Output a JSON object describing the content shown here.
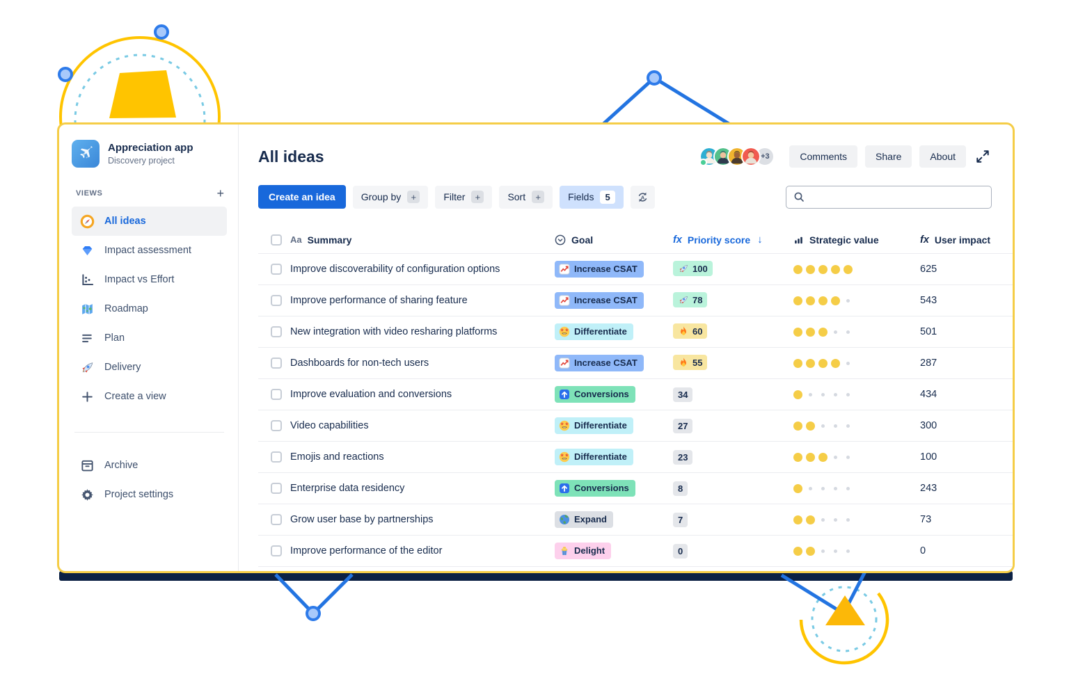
{
  "app": {
    "name": "Appreciation app",
    "project_type": "Discovery project",
    "icon": "airplane-icon"
  },
  "sidebar": {
    "views_label": "VIEWS",
    "add_view_label": "+",
    "items": [
      {
        "label": "All ideas",
        "icon": "compass-icon",
        "selected": true
      },
      {
        "label": "Impact assessment",
        "icon": "diamond-icon",
        "selected": false
      },
      {
        "label": "Impact vs Effort",
        "icon": "scatter-chart-icon",
        "selected": false
      },
      {
        "label": "Roadmap",
        "icon": "map-icon",
        "selected": false
      },
      {
        "label": "Plan",
        "icon": "align-lines-icon",
        "selected": false
      },
      {
        "label": "Delivery",
        "icon": "rocket-color-icon",
        "selected": false
      },
      {
        "label": "Create a view",
        "icon": "plus-icon",
        "selected": false
      }
    ],
    "footer_items": [
      {
        "label": "Archive",
        "icon": "archive-box-icon"
      },
      {
        "label": "Project settings",
        "icon": "gear-icon"
      }
    ]
  },
  "header": {
    "title": "All ideas",
    "avatars": [
      {
        "bg": "#2eafd3",
        "hair": "#e8713c",
        "skin": "#f5dec8",
        "shirt": "#f7f1e8",
        "status": true
      },
      {
        "bg": "#53c08a",
        "hair": "#3c4a5c",
        "skin": "#eec19c",
        "shirt": "#2f3b4e",
        "status": false
      },
      {
        "bg": "#f0b42f",
        "hair": "#33271f",
        "skin": "#9c6238",
        "shirt": "#4a3b2e",
        "status": false
      },
      {
        "bg": "#f15b50",
        "hair": "#7a4b2e",
        "skin": "#f2cba2",
        "shirt": "#e8e2d8",
        "status": false
      }
    ],
    "avatar_overflow": "+3",
    "buttons": [
      {
        "label": "Comments"
      },
      {
        "label": "Share"
      },
      {
        "label": "About"
      }
    ]
  },
  "toolbar": {
    "create_button": "Create an idea",
    "group_by": "Group by",
    "filter": "Filter",
    "sort": "Sort",
    "fields": "Fields",
    "fields_count": "5",
    "plus_badge": "+",
    "search_placeholder": ""
  },
  "table": {
    "header": {
      "summary": "Summary",
      "summary_icon_glyph": "Aa",
      "goal": "Goal",
      "priority": "Priority score",
      "priority_fx": "fx",
      "sort_arrow": "↓",
      "strategic": "Strategic value",
      "impact": "User impact",
      "impact_fx": "fx"
    },
    "strategic_max": 5,
    "rows": [
      {
        "summary": "Improve discoverability of configuration options",
        "goal": {
          "label": "Increase CSAT",
          "type": "csat",
          "icon": "chart-increasing-icon"
        },
        "priority": {
          "value": "100",
          "type": "green",
          "icon": "rocket-icon"
        },
        "strategic_value": 5,
        "user_impact": "625"
      },
      {
        "summary": "Improve performance of sharing feature",
        "goal": {
          "label": "Increase CSAT",
          "type": "csat",
          "icon": "chart-increasing-icon"
        },
        "priority": {
          "value": "78",
          "type": "green",
          "icon": "rocket-icon"
        },
        "strategic_value": 4,
        "user_impact": "543"
      },
      {
        "summary": "New integration with video resharing platforms",
        "goal": {
          "label": "Differentiate",
          "type": "differentiate",
          "icon": "star-struck-icon"
        },
        "priority": {
          "value": "60",
          "type": "yellow",
          "icon": "fire-icon"
        },
        "strategic_value": 3,
        "user_impact": "501"
      },
      {
        "summary": "Dashboards for non-tech users",
        "goal": {
          "label": "Increase CSAT",
          "type": "csat",
          "icon": "chart-increasing-icon"
        },
        "priority": {
          "value": "55",
          "type": "yellow",
          "icon": "fire-icon"
        },
        "strategic_value": 4,
        "user_impact": "287"
      },
      {
        "summary": "Improve evaluation and conversions",
        "goal": {
          "label": "Conversions",
          "type": "conversions",
          "icon": "up-arrow-icon"
        },
        "priority": {
          "value": "34",
          "type": "gray",
          "icon": ""
        },
        "strategic_value": 1,
        "user_impact": "434"
      },
      {
        "summary": "Video capabilities",
        "goal": {
          "label": "Differentiate",
          "type": "differentiate",
          "icon": "star-struck-icon"
        },
        "priority": {
          "value": "27",
          "type": "gray",
          "icon": ""
        },
        "strategic_value": 2,
        "user_impact": "300"
      },
      {
        "summary": "Emojis and reactions",
        "goal": {
          "label": "Differentiate",
          "type": "differentiate",
          "icon": "star-struck-icon"
        },
        "priority": {
          "value": "23",
          "type": "gray",
          "icon": ""
        },
        "strategic_value": 3,
        "user_impact": "100"
      },
      {
        "summary": "Enterprise data residency",
        "goal": {
          "label": "Conversions",
          "type": "conversions",
          "icon": "up-arrow-icon"
        },
        "priority": {
          "value": "8",
          "type": "gray",
          "icon": ""
        },
        "strategic_value": 1,
        "user_impact": "243"
      },
      {
        "summary": "Grow user base by partnerships",
        "goal": {
          "label": "Expand",
          "type": "expand",
          "icon": "globe-icon"
        },
        "priority": {
          "value": "7",
          "type": "gray",
          "icon": ""
        },
        "strategic_value": 2,
        "user_impact": "73"
      },
      {
        "summary": "Improve performance of the editor",
        "goal": {
          "label": "Delight",
          "type": "delight",
          "icon": "cupcake-icon"
        },
        "priority": {
          "value": "0",
          "type": "gray",
          "icon": ""
        },
        "strategic_value": 2,
        "user_impact": "0"
      }
    ]
  },
  "colors": {
    "accent_blue": "#1868db",
    "panel_border": "#f5cd47",
    "panel_shadow": "#0c2144",
    "goal_csat_bg": "#8fb8f9",
    "goal_differentiate_bg": "#c0f0f8",
    "goal_conversions_bg": "#7ee2b8",
    "goal_expand_bg": "#dcdfe4",
    "goal_delight_bg": "#fdd0ec",
    "priority_green_bg": "#baf3db",
    "priority_yellow_bg": "#f8e6a0",
    "priority_gray_bg": "#e4e6ea",
    "dot_filled": "#f5cd47",
    "dot_empty": "#d5d9e0"
  }
}
